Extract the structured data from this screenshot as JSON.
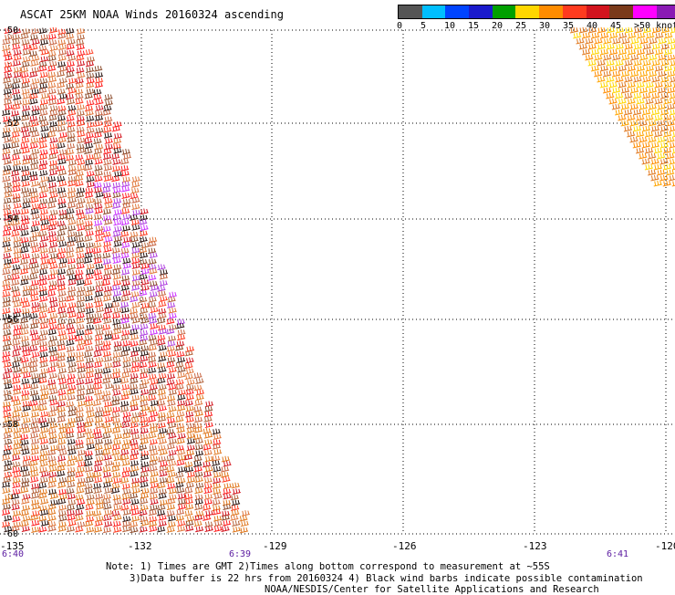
{
  "title": "ASCAT 25KM NOAA Winds 20160324 ascending",
  "legend": {
    "labels": [
      "0",
      "5",
      "10",
      "15",
      "20",
      "25",
      "30",
      "35",
      "40",
      "45",
      ">50 knots"
    ],
    "colors": [
      "#555555",
      "#00bfff",
      "#0044ff",
      "#1a1acc",
      "#00a000",
      "#ffd700",
      "#ff8c00",
      "#ff3b1f",
      "#d2141e",
      "#7a3a1a",
      "#ff00ff",
      "#8a1ab4",
      "#3a0a6a"
    ]
  },
  "axes": {
    "lat_labels": [
      "-50",
      "-52",
      "-54",
      "-56",
      "-58",
      "-60"
    ],
    "lon_labels": [
      "-135",
      "-132",
      "-129",
      "-126",
      "-123",
      "-120"
    ],
    "times": [
      "6:40",
      "6:39",
      "6:41"
    ]
  },
  "notes": {
    "line1": "Note: 1) Times are GMT 2)Times along bottom correspond to measurement at ~55S",
    "line2": "3)Data buffer is 22 hrs from 20160324 4) Black wind barbs indicate possible contamination",
    "line3": "NOAA/NESDIS/Center for Satellite Applications and Research"
  }
}
